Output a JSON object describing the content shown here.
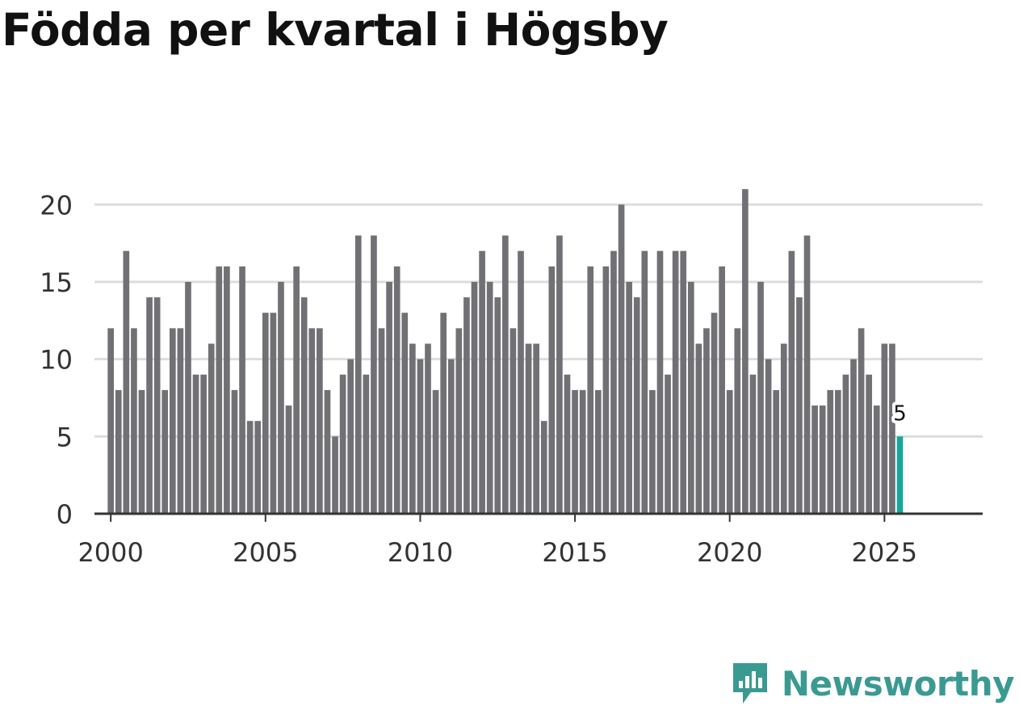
{
  "title": "Födda per kvartal i Högsby",
  "logo": {
    "text": "Newsworthy",
    "icon": "newsworthy-logo-icon",
    "color": "#3a9a92"
  },
  "colors": {
    "bar": "#717074",
    "highlight": "#18a59e",
    "grid": "#dddddd",
    "axis": "#333333"
  },
  "chart_data": {
    "type": "bar",
    "title": "Födda per kvartal i Högsby",
    "xlabel": "",
    "ylabel": "",
    "x_start_year": 2000,
    "periods_per_year": 4,
    "xlim": [
      1999.5,
      2028.2
    ],
    "ylim": [
      0,
      22
    ],
    "yticks": [
      0,
      5,
      10,
      15,
      20
    ],
    "xticks": [
      2000,
      2005,
      2010,
      2015,
      2020,
      2025
    ],
    "grid": true,
    "values": [
      12,
      8,
      17,
      12,
      8,
      14,
      14,
      8,
      12,
      12,
      15,
      9,
      9,
      11,
      16,
      16,
      8,
      16,
      6,
      6,
      13,
      13,
      15,
      7,
      16,
      14,
      12,
      12,
      8,
      5,
      9,
      10,
      18,
      9,
      18,
      12,
      15,
      16,
      13,
      11,
      10,
      11,
      8,
      13,
      10,
      12,
      14,
      15,
      17,
      15,
      14,
      18,
      12,
      17,
      11,
      11,
      6,
      16,
      18,
      9,
      8,
      8,
      16,
      8,
      16,
      17,
      20,
      15,
      14,
      17,
      8,
      17,
      9,
      17,
      17,
      15,
      11,
      12,
      13,
      16,
      8,
      12,
      21,
      9,
      15,
      10,
      8,
      11,
      17,
      14,
      18,
      7,
      7,
      8,
      8,
      9,
      10,
      12,
      9,
      7,
      11,
      11,
      5
    ],
    "highlight_index": 102,
    "highlight_label": "5"
  }
}
